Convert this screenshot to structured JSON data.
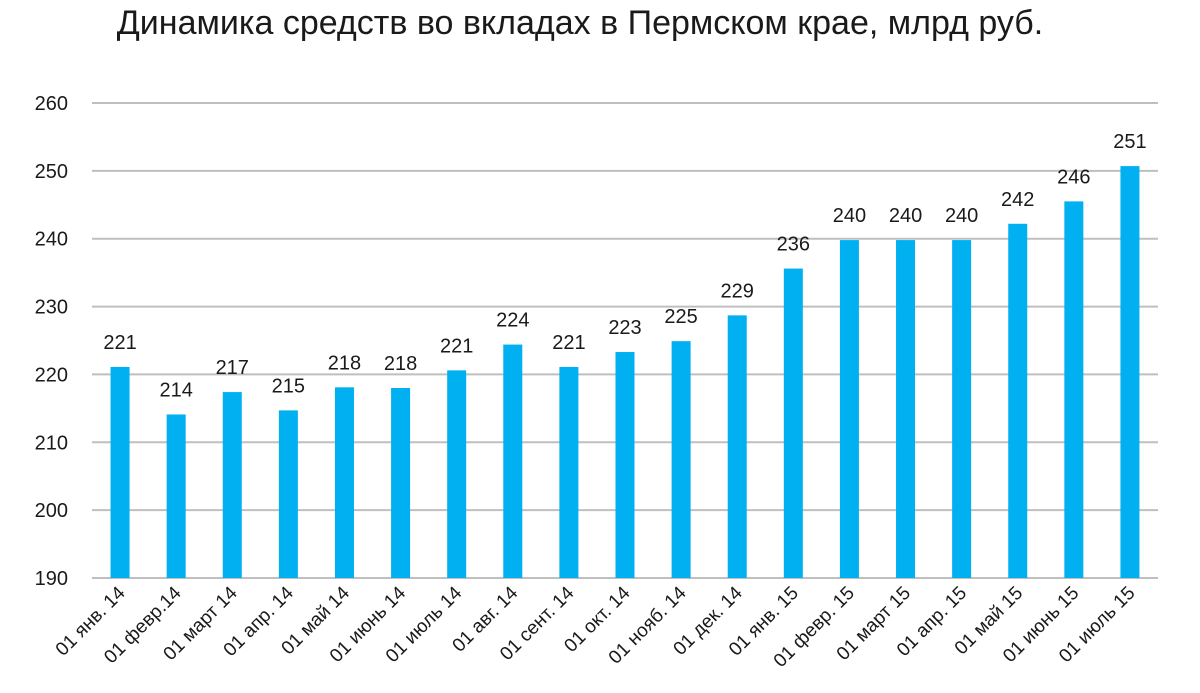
{
  "chart_data": {
    "type": "bar",
    "title": "Динамика средств во вкладах в Пермском крае, млрд руб.",
    "xlabel": "",
    "ylabel": "",
    "ylim": [
      190,
      260
    ],
    "yticks": [
      190,
      200,
      210,
      220,
      230,
      240,
      250,
      260
    ],
    "grid": true,
    "bar_color": "#00B0F0",
    "grid_color": "#BFBFBF",
    "categories": [
      "01 янв. 14",
      "01 февр.14",
      "01 март 14",
      "01 апр. 14",
      "01 май 14",
      "01 июнь 14",
      "01 июль 14",
      "01 авг. 14",
      "01 сент. 14",
      "01 окт. 14",
      "01 нояб. 14",
      "01 дек. 14",
      "01 янв. 15",
      "01 февр. 15",
      "01 март 15",
      "01 апр. 15",
      "01 май 15",
      "01 июнь 15",
      "01 июль 15"
    ],
    "values": [
      221.1,
      214.1,
      217.4,
      214.7,
      218.1,
      218.0,
      220.6,
      224.4,
      221.1,
      223.3,
      224.9,
      228.7,
      235.6,
      239.8,
      239.8,
      239.8,
      242.2,
      245.5,
      250.7
    ],
    "data_labels": [
      "221",
      "214",
      "217",
      "215",
      "218",
      "218",
      "221",
      "224",
      "221",
      "223",
      "225",
      "229",
      "236",
      "240",
      "240",
      "240",
      "242",
      "246",
      "251"
    ]
  }
}
